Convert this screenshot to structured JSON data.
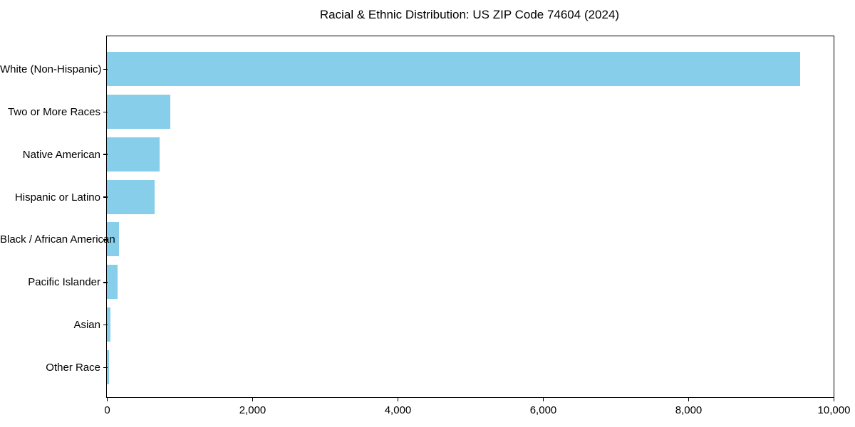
{
  "chart_data": {
    "type": "bar",
    "orientation": "horizontal",
    "title": "Racial & Ethnic Distribution: US ZIP Code 74604 (2024)",
    "categories": [
      "White (Non-Hispanic)",
      "Two or More Races",
      "Native American",
      "Hispanic or Latino",
      "Black / African American",
      "Pacific Islander",
      "Asian",
      "Other Race"
    ],
    "values": [
      9540,
      875,
      725,
      655,
      165,
      150,
      50,
      25
    ],
    "xlabel": "",
    "ylabel": "",
    "xlim": [
      0,
      10000
    ],
    "xticks": {
      "values": [
        0,
        2000,
        4000,
        6000,
        8000,
        10000
      ],
      "labels": [
        "0",
        "2,000",
        "4,000",
        "6,000",
        "8,000",
        "10,000"
      ]
    },
    "grid": false,
    "legend": null,
    "bar_color": "#87CEEB",
    "axis_color": "#000000",
    "text_color": "#000000",
    "background_color": "#FFFFFF"
  }
}
